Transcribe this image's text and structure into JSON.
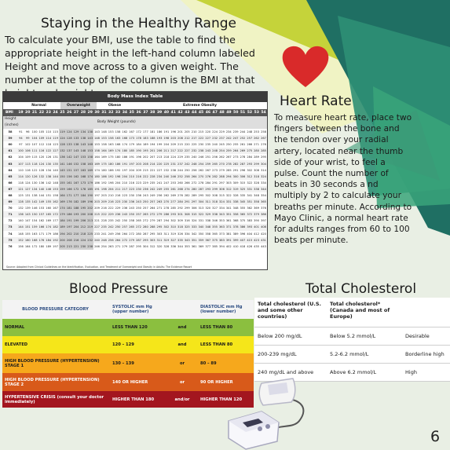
{
  "page_number": "6",
  "bmi_section": {
    "title": "Staying in the Healthy Range",
    "intro": "To calculate your BMI, use the table to find the appropriate height in the left-hand column labeled Height and move across to a given weight. The number at the top of the column is the BMI at that height and weight.",
    "table": {
      "title": "Body Mass Index Table",
      "categories": [
        "Normal",
        "Overweight",
        "Obese",
        "Extreme Obesity"
      ],
      "bmi_label": "BMI",
      "height_label": "Height (inches)",
      "weight_label": "Body Weight (pounds)",
      "bmi_values": [
        "19",
        "20",
        "21",
        "22",
        "23",
        "24",
        "25",
        "26",
        "27",
        "28",
        "29",
        "30",
        "31",
        "32",
        "33",
        "34",
        "35",
        "36",
        "37",
        "38",
        "39",
        "40",
        "41",
        "42",
        "43",
        "44",
        "45",
        "46",
        "47",
        "48",
        "49",
        "50",
        "51",
        "52",
        "53",
        "54"
      ],
      "rows": [
        [
          "58",
          "91",
          "96",
          "100",
          "105",
          "110",
          "115",
          "119",
          "124",
          "129",
          "134",
          "138",
          "143",
          "148",
          "153",
          "158",
          "162",
          "167",
          "172",
          "177",
          "181",
          "186",
          "191",
          "196",
          "201",
          "205",
          "210",
          "215",
          "220",
          "224",
          "229",
          "234",
          "239",
          "244",
          "248",
          "253",
          "258"
        ],
        [
          "59",
          "94",
          "99",
          "104",
          "109",
          "114",
          "119",
          "124",
          "128",
          "133",
          "138",
          "143",
          "148",
          "153",
          "158",
          "163",
          "168",
          "173",
          "178",
          "183",
          "188",
          "193",
          "198",
          "203",
          "208",
          "212",
          "217",
          "222",
          "227",
          "232",
          "237",
          "242",
          "247",
          "252",
          "257",
          "262",
          "267"
        ],
        [
          "60",
          "97",
          "102",
          "107",
          "112",
          "118",
          "123",
          "128",
          "133",
          "138",
          "143",
          "148",
          "153",
          "158",
          "163",
          "168",
          "174",
          "179",
          "184",
          "189",
          "194",
          "199",
          "204",
          "209",
          "215",
          "220",
          "225",
          "230",
          "235",
          "240",
          "245",
          "250",
          "255",
          "261",
          "266",
          "271",
          "276"
        ],
        [
          "61",
          "100",
          "106",
          "111",
          "116",
          "122",
          "127",
          "132",
          "137",
          "143",
          "148",
          "153",
          "158",
          "164",
          "169",
          "174",
          "180",
          "185",
          "190",
          "195",
          "201",
          "206",
          "211",
          "217",
          "222",
          "227",
          "232",
          "238",
          "243",
          "248",
          "254",
          "259",
          "264",
          "269",
          "275",
          "280",
          "285"
        ],
        [
          "62",
          "104",
          "109",
          "115",
          "120",
          "126",
          "131",
          "136",
          "142",
          "147",
          "153",
          "158",
          "164",
          "169",
          "175",
          "180",
          "186",
          "191",
          "196",
          "202",
          "207",
          "213",
          "218",
          "224",
          "229",
          "235",
          "240",
          "246",
          "251",
          "256",
          "262",
          "267",
          "273",
          "278",
          "284",
          "289",
          "295"
        ],
        [
          "63",
          "107",
          "113",
          "118",
          "124",
          "130",
          "135",
          "141",
          "146",
          "152",
          "158",
          "163",
          "169",
          "175",
          "180",
          "186",
          "191",
          "197",
          "203",
          "208",
          "214",
          "220",
          "225",
          "231",
          "237",
          "242",
          "248",
          "254",
          "259",
          "265",
          "270",
          "278",
          "282",
          "287",
          "293",
          "299",
          "304"
        ],
        [
          "64",
          "110",
          "116",
          "122",
          "128",
          "134",
          "140",
          "145",
          "151",
          "157",
          "163",
          "169",
          "174",
          "180",
          "186",
          "192",
          "197",
          "204",
          "209",
          "215",
          "221",
          "227",
          "232",
          "238",
          "244",
          "250",
          "256",
          "262",
          "267",
          "273",
          "279",
          "285",
          "291",
          "296",
          "302",
          "308",
          "314"
        ],
        [
          "65",
          "114",
          "120",
          "126",
          "132",
          "138",
          "144",
          "150",
          "156",
          "162",
          "168",
          "174",
          "180",
          "186",
          "192",
          "198",
          "204",
          "210",
          "216",
          "222",
          "228",
          "234",
          "240",
          "246",
          "252",
          "258",
          "264",
          "270",
          "276",
          "282",
          "288",
          "294",
          "300",
          "306",
          "312",
          "318",
          "324"
        ],
        [
          "66",
          "118",
          "124",
          "130",
          "136",
          "142",
          "148",
          "155",
          "161",
          "167",
          "173",
          "179",
          "186",
          "192",
          "198",
          "204",
          "210",
          "216",
          "223",
          "229",
          "235",
          "241",
          "247",
          "253",
          "260",
          "266",
          "272",
          "278",
          "284",
          "291",
          "297",
          "303",
          "309",
          "315",
          "322",
          "328",
          "334"
        ],
        [
          "67",
          "121",
          "127",
          "134",
          "140",
          "146",
          "153",
          "159",
          "166",
          "172",
          "178",
          "185",
          "191",
          "198",
          "204",
          "211",
          "217",
          "223",
          "230",
          "236",
          "242",
          "249",
          "255",
          "261",
          "268",
          "274",
          "280",
          "287",
          "293",
          "299",
          "306",
          "312",
          "319",
          "325",
          "331",
          "338",
          "344"
        ],
        [
          "68",
          "125",
          "131",
          "138",
          "144",
          "151",
          "158",
          "164",
          "171",
          "177",
          "184",
          "190",
          "197",
          "203",
          "210",
          "216",
          "223",
          "230",
          "236",
          "243",
          "249",
          "256",
          "262",
          "269",
          "276",
          "282",
          "289",
          "295",
          "302",
          "308",
          "315",
          "322",
          "328",
          "335",
          "341",
          "348",
          "354"
        ],
        [
          "69",
          "128",
          "135",
          "142",
          "149",
          "155",
          "162",
          "169",
          "176",
          "182",
          "189",
          "196",
          "203",
          "209",
          "216",
          "223",
          "230",
          "236",
          "243",
          "250",
          "257",
          "263",
          "270",
          "277",
          "284",
          "291",
          "297",
          "304",
          "311",
          "318",
          "324",
          "331",
          "338",
          "345",
          "351",
          "358",
          "365"
        ],
        [
          "70",
          "132",
          "139",
          "146",
          "153",
          "160",
          "167",
          "174",
          "181",
          "188",
          "195",
          "202",
          "209",
          "216",
          "222",
          "229",
          "236",
          "243",
          "250",
          "257",
          "264",
          "271",
          "278",
          "285",
          "292",
          "299",
          "306",
          "313",
          "320",
          "327",
          "334",
          "341",
          "348",
          "355",
          "362",
          "369",
          "376"
        ],
        [
          "71",
          "136",
          "143",
          "150",
          "157",
          "165",
          "172",
          "179",
          "186",
          "193",
          "200",
          "208",
          "215",
          "222",
          "229",
          "236",
          "243",
          "250",
          "257",
          "265",
          "272",
          "279",
          "286",
          "293",
          "301",
          "308",
          "315",
          "322",
          "329",
          "338",
          "343",
          "351",
          "358",
          "365",
          "372",
          "379",
          "386"
        ],
        [
          "72",
          "140",
          "147",
          "154",
          "162",
          "169",
          "177",
          "184",
          "191",
          "199",
          "206",
          "213",
          "221",
          "228",
          "235",
          "242",
          "250",
          "258",
          "265",
          "272",
          "279",
          "287",
          "294",
          "302",
          "309",
          "316",
          "324",
          "331",
          "338",
          "346",
          "353",
          "361",
          "368",
          "375",
          "383",
          "390",
          "397"
        ],
        [
          "73",
          "144",
          "151",
          "159",
          "166",
          "174",
          "182",
          "189",
          "197",
          "204",
          "212",
          "219",
          "227",
          "235",
          "242",
          "250",
          "257",
          "265",
          "272",
          "280",
          "288",
          "295",
          "302",
          "310",
          "318",
          "325",
          "333",
          "340",
          "348",
          "355",
          "363",
          "371",
          "378",
          "386",
          "393",
          "401",
          "408"
        ],
        [
          "74",
          "148",
          "155",
          "163",
          "171",
          "179",
          "186",
          "194",
          "202",
          "210",
          "218",
          "225",
          "233",
          "241",
          "249",
          "256",
          "264",
          "272",
          "280",
          "287",
          "295",
          "303",
          "311",
          "319",
          "326",
          "334",
          "342",
          "350",
          "358",
          "365",
          "373",
          "381",
          "389",
          "396",
          "404",
          "412",
          "420"
        ],
        [
          "75",
          "152",
          "160",
          "168",
          "176",
          "184",
          "192",
          "200",
          "208",
          "216",
          "224",
          "232",
          "240",
          "248",
          "256",
          "264",
          "272",
          "279",
          "287",
          "295",
          "303",
          "311",
          "319",
          "327",
          "335",
          "343",
          "351",
          "359",
          "367",
          "375",
          "383",
          "391",
          "399",
          "407",
          "415",
          "423",
          "431"
        ],
        [
          "76",
          "156",
          "164",
          "172",
          "180",
          "189",
          "197",
          "205",
          "213",
          "221",
          "230",
          "238",
          "246",
          "254",
          "263",
          "271",
          "279",
          "287",
          "295",
          "304",
          "312",
          "320",
          "328",
          "336",
          "344",
          "353",
          "361",
          "369",
          "377",
          "385",
          "394",
          "402",
          "410",
          "418",
          "426",
          "435",
          "443"
        ]
      ],
      "source": "Source: Adapted from Clinical Guidelines on the Identification, Evaluation, and Treatment of Overweight and Obesity in Adults: The Evidence Report"
    }
  },
  "heart_section": {
    "title": "Heart Rate",
    "body": "To measure heart rate, place two fingers between the bone and the tendon over your radial artery, located near the thumb side of your wrist, to feel a pulse. Count the number of beats in 30 seconds a nd multiply by 2 to calculate your breaths per minute. According to Mayo Clinic, a normal heart rate for adults ranges from 60 to 100 beats per minute."
  },
  "bp_section": {
    "title": "Blood Pressure",
    "header": {
      "category": "BLOOD PRESSURE CATEGORY",
      "systolic": "SYSTOLIC mm Hg (upper number)",
      "diastolic": "DIASTOLIC mm Hg (lower number)"
    },
    "rows": [
      {
        "category": "NORMAL",
        "systolic": "LESS THAN 120",
        "conj": "and",
        "diastolic": "LESS THAN 80",
        "color": "#8bbf3f",
        "text_color": "#1a1a1a"
      },
      {
        "category": "ELEVATED",
        "systolic": "120 – 129",
        "conj": "and",
        "diastolic": "LESS THAN 80",
        "color": "#f5e61a",
        "text_color": "#1a1a1a"
      },
      {
        "category": "HIGH BLOOD PRESSURE (HYPERTENSION) STAGE 1",
        "systolic": "130 – 139",
        "conj": "or",
        "diastolic": "80 – 89",
        "color": "#f6a81c",
        "text_color": "#1a1a1a"
      },
      {
        "category": "HIGH BLOOD PRESSURE (HYPERTENSION) STAGE 2",
        "systolic": "140 OR HIGHER",
        "conj": "or",
        "diastolic": "90 OR HIGHER",
        "color": "#d85a1a",
        "text_color": "#ffffff"
      },
      {
        "category": "HYPERTENSIVE CRISIS (consult your doctor immediately)",
        "systolic": "HIGHER THAN 180",
        "conj": "and/or",
        "diastolic": "HIGHER THAN 120",
        "color": "#a3161f",
        "text_color": "#ffffff"
      }
    ]
  },
  "chol_section": {
    "title": "Total Cholesterol",
    "header": {
      "a": "Total cholesterol (U.S. and some other countries)",
      "b": "Total cholesterol* (Canada and most of Europe)",
      "c": ""
    },
    "rows": [
      {
        "a": "Below 200 mg/dL",
        "b": "Below 5.2 mmol/L",
        "c": "Desirable"
      },
      {
        "a": "200-239 mg/dL",
        "b": "5.2-6.2 mmol/L",
        "c": "Borderline high"
      },
      {
        "a": "240 mg/dL and above",
        "b": "Above 6.2 mmol/L",
        "c": "High"
      }
    ]
  },
  "colors": {
    "background": "#e9efe4",
    "teal_dark": "#1e6b63",
    "teal": "#2b8b73",
    "lime": "#c5d33a",
    "heart_red": "#d92a2a"
  },
  "icons": [
    "heart-icon",
    "blood-pressure-monitor-icon"
  ]
}
